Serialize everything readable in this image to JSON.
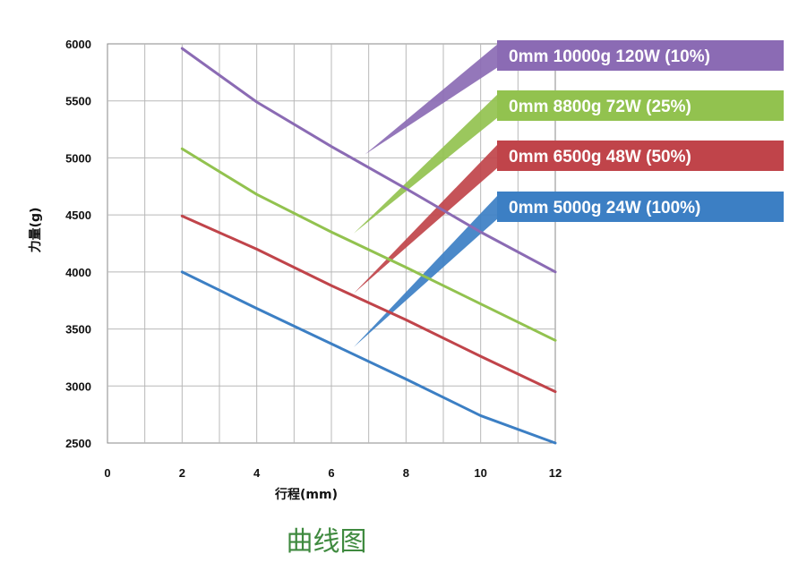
{
  "chart_data": {
    "type": "line",
    "title": "",
    "xlabel": "行程(mm)",
    "ylabel": "力量(g)",
    "xlim": [
      0,
      12
    ],
    "ylim": [
      2500,
      6000
    ],
    "xticks": [
      0,
      2,
      4,
      6,
      8,
      10,
      12
    ],
    "yticks": [
      2500,
      3000,
      3500,
      4000,
      4500,
      5000,
      5500,
      6000
    ],
    "grid": true,
    "legend_position": "right",
    "series": [
      {
        "name": "0mm 10000g  120W (10%)",
        "color": "#8b6bb4",
        "x": [
          2,
          4,
          6,
          8,
          10,
          12
        ],
        "y": [
          5960,
          5490,
          5100,
          4730,
          4350,
          4000
        ]
      },
      {
        "name": "0mm 8800g  72W  (25%)",
        "color": "#92c24f",
        "x": [
          2,
          4,
          6,
          8,
          10,
          12
        ],
        "y": [
          5080,
          4680,
          4350,
          4040,
          3720,
          3400
        ]
      },
      {
        "name": "0mm 6500g  48W  (50%)",
        "color": "#c0444a",
        "x": [
          2,
          4,
          6,
          8,
          10,
          12
        ],
        "y": [
          4490,
          4200,
          3880,
          3580,
          3260,
          2950
        ]
      },
      {
        "name": "0mm 5000g  24W (100%)",
        "color": "#3c7fc4",
        "x": [
          2,
          4,
          6,
          8,
          10,
          12
        ],
        "y": [
          4000,
          3680,
          3370,
          3060,
          2740,
          2500
        ]
      }
    ]
  },
  "caption": "曲线图"
}
